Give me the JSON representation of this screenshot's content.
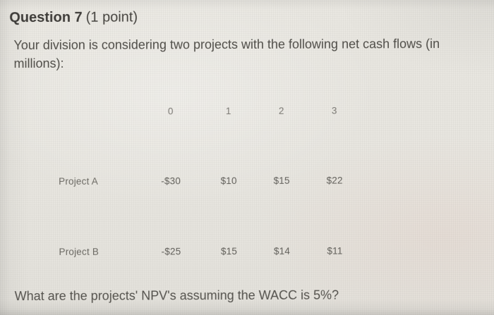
{
  "colors": {
    "screen_background": "#e7e4df",
    "title_text": "#3f3d3a",
    "body_text": "#504e49",
    "table_header_text": "#7b7974",
    "table_value_text": "#615f5a"
  },
  "header": {
    "number": "Question 7",
    "points": "(1 point)"
  },
  "intro": "Your division is considering two projects with the following net cash flows (in millions):",
  "table": {
    "columns": [
      "0",
      "1",
      "2",
      "3"
    ],
    "rows": [
      {
        "label": "Project A",
        "values": [
          "-$30",
          "$10",
          "$15",
          "$22"
        ]
      },
      {
        "label": "Project B",
        "values": [
          "-$25",
          "$15",
          "$14",
          "$11"
        ]
      }
    ]
  },
  "prompt": "What are the projects' NPV's assuming the WACC is 5%?"
}
